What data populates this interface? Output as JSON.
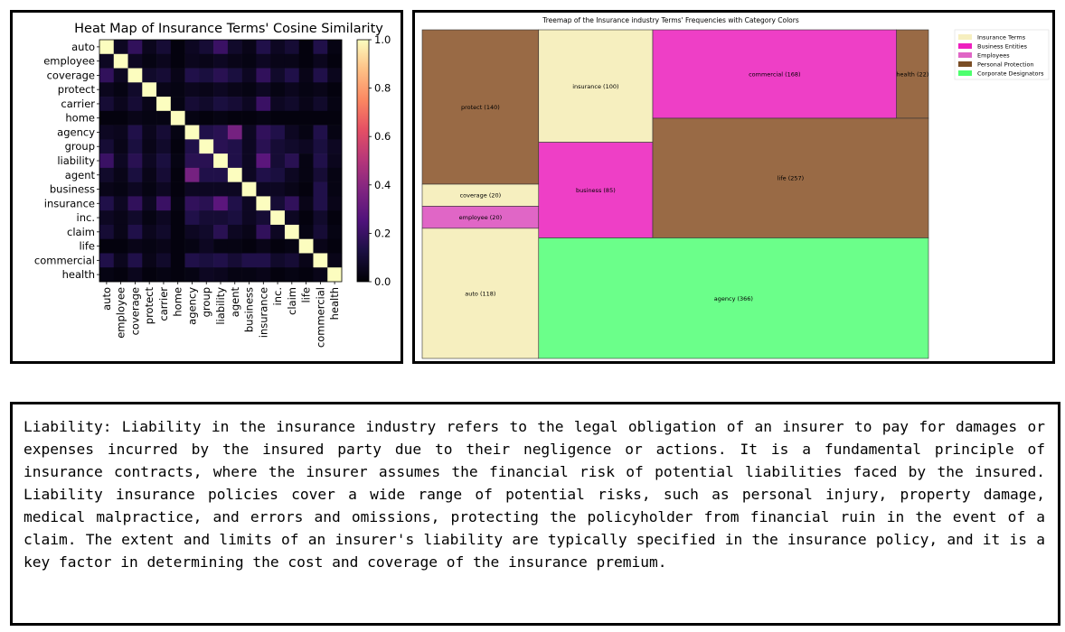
{
  "heatmap": {
    "title": "Heat Map of Insurance Terms' Cosine Similarity",
    "terms": [
      "auto",
      "employee",
      "coverage",
      "protect",
      "carrier",
      "home",
      "agency",
      "group",
      "liability",
      "agent",
      "business",
      "insurance",
      "inc.",
      "claim",
      "life",
      "commercial",
      "health"
    ],
    "colorbar": {
      "min": 0.0,
      "max": 1.0,
      "ticks": [
        "0.0",
        "0.2",
        "0.4",
        "0.6",
        "0.8",
        "1.0"
      ],
      "colormap": "magma"
    },
    "matrix": [
      [
        1.0,
        0.06,
        0.18,
        0.05,
        0.1,
        0.02,
        0.06,
        0.1,
        0.2,
        0.08,
        0.04,
        0.14,
        0.06,
        0.1,
        0.02,
        0.14,
        0.03
      ],
      [
        0.06,
        1.0,
        0.06,
        0.03,
        0.05,
        0.02,
        0.05,
        0.04,
        0.06,
        0.04,
        0.03,
        0.06,
        0.04,
        0.04,
        0.02,
        0.05,
        0.02
      ],
      [
        0.18,
        0.06,
        1.0,
        0.08,
        0.1,
        0.04,
        0.14,
        0.12,
        0.16,
        0.12,
        0.06,
        0.18,
        0.08,
        0.14,
        0.04,
        0.14,
        0.05
      ],
      [
        0.05,
        0.03,
        0.08,
        1.0,
        0.04,
        0.03,
        0.05,
        0.04,
        0.06,
        0.04,
        0.03,
        0.06,
        0.03,
        0.05,
        0.03,
        0.04,
        0.02
      ],
      [
        0.1,
        0.05,
        0.1,
        0.04,
        1.0,
        0.03,
        0.1,
        0.08,
        0.12,
        0.1,
        0.06,
        0.2,
        0.06,
        0.08,
        0.04,
        0.08,
        0.03
      ],
      [
        0.02,
        0.02,
        0.04,
        0.03,
        0.03,
        1.0,
        0.03,
        0.02,
        0.03,
        0.02,
        0.02,
        0.03,
        0.02,
        0.02,
        0.02,
        0.02,
        0.02
      ],
      [
        0.06,
        0.05,
        0.14,
        0.05,
        0.1,
        0.03,
        1.0,
        0.14,
        0.16,
        0.35,
        0.06,
        0.18,
        0.14,
        0.06,
        0.03,
        0.14,
        0.03
      ],
      [
        0.1,
        0.04,
        0.12,
        0.04,
        0.08,
        0.02,
        0.14,
        1.0,
        0.16,
        0.14,
        0.06,
        0.16,
        0.1,
        0.08,
        0.06,
        0.12,
        0.06
      ],
      [
        0.2,
        0.06,
        0.16,
        0.06,
        0.12,
        0.03,
        0.16,
        0.16,
        1.0,
        0.14,
        0.06,
        0.28,
        0.1,
        0.16,
        0.03,
        0.14,
        0.05
      ],
      [
        0.08,
        0.04,
        0.12,
        0.04,
        0.1,
        0.02,
        0.35,
        0.14,
        0.14,
        1.0,
        0.06,
        0.14,
        0.12,
        0.06,
        0.03,
        0.1,
        0.03
      ],
      [
        0.04,
        0.03,
        0.06,
        0.03,
        0.06,
        0.02,
        0.06,
        0.06,
        0.06,
        0.06,
        1.0,
        0.06,
        0.06,
        0.04,
        0.02,
        0.14,
        0.03
      ],
      [
        0.14,
        0.06,
        0.18,
        0.06,
        0.2,
        0.03,
        0.18,
        0.16,
        0.28,
        0.14,
        0.06,
        1.0,
        0.1,
        0.18,
        0.04,
        0.14,
        0.04
      ],
      [
        0.06,
        0.04,
        0.08,
        0.03,
        0.06,
        0.02,
        0.14,
        0.1,
        0.1,
        0.12,
        0.06,
        0.1,
        1.0,
        0.06,
        0.02,
        0.08,
        0.02
      ],
      [
        0.1,
        0.04,
        0.14,
        0.05,
        0.08,
        0.02,
        0.06,
        0.08,
        0.16,
        0.06,
        0.04,
        0.18,
        0.06,
        1.0,
        0.03,
        0.1,
        0.03
      ],
      [
        0.02,
        0.02,
        0.04,
        0.03,
        0.04,
        0.02,
        0.03,
        0.06,
        0.03,
        0.03,
        0.02,
        0.04,
        0.02,
        0.03,
        1.0,
        0.04,
        0.02
      ],
      [
        0.14,
        0.05,
        0.14,
        0.04,
        0.08,
        0.02,
        0.14,
        0.12,
        0.14,
        0.1,
        0.14,
        0.14,
        0.08,
        0.1,
        0.04,
        1.0,
        0.04
      ],
      [
        0.03,
        0.02,
        0.05,
        0.02,
        0.03,
        0.02,
        0.03,
        0.06,
        0.05,
        0.03,
        0.03,
        0.04,
        0.02,
        0.03,
        0.02,
        0.04,
        1.0
      ]
    ]
  },
  "treemap": {
    "title": "Treemap of the Insurance industry Terms' Frequencies with Category Colors",
    "legend": [
      {
        "label": "Insurance Terms",
        "color": "#f6efbf"
      },
      {
        "label": "Business Entities",
        "color": "#ee1fbf"
      },
      {
        "label": "Employees",
        "color": "#e066c6"
      },
      {
        "label": "Personal Protection",
        "color": "#7a4d25"
      },
      {
        "label": "Corporate Designators",
        "color": "#4dff6e"
      }
    ],
    "items": [
      {
        "term": "protect",
        "value": 140,
        "label": "protect (140)",
        "color": "#996a45"
      },
      {
        "term": "coverage",
        "value": 20,
        "label": "coverage (20)",
        "color": "#f6efbf"
      },
      {
        "term": "employee",
        "value": 20,
        "label": "employee (20)",
        "color": "#e066c6"
      },
      {
        "term": "auto",
        "value": 118,
        "label": "auto (118)",
        "color": "#f6efbf"
      },
      {
        "term": "insurance",
        "value": 100,
        "label": "insurance (100)",
        "color": "#f6efbf"
      },
      {
        "term": "business",
        "value": 85,
        "label": "business (85)",
        "color": "#ee3fc6"
      },
      {
        "term": "commercial",
        "value": 168,
        "label": "commercial (168)",
        "color": "#ee3fc6"
      },
      {
        "term": "health",
        "value": 22,
        "label": "health (22)",
        "color": "#996a45"
      },
      {
        "term": "life",
        "value": 257,
        "label": "life (257)",
        "color": "#996a45"
      },
      {
        "term": "agency",
        "value": 366,
        "label": "agency (366)",
        "color": "#6bff8a"
      }
    ]
  },
  "description": "Liability: Liability in the insurance industry refers to the legal obligation of an insurer to pay for damages or expenses incurred by the insured party due to their negligence or actions. It is a fundamental principle of insurance contracts, where the insurer assumes the financial risk of potential liabilities faced by the insured. Liability insurance policies cover a wide range of potential risks, such as personal injury, property damage, medical malpractice, and errors and omissions, protecting the policyholder from financial ruin in the event of a claim. The extent and limits of an insurer's liability are typically specified in the insurance policy, and it is a key factor in determining the cost and coverage of the insurance premium.",
  "chart_data": [
    {
      "type": "heatmap",
      "title": "Heat Map of Insurance Terms' Cosine Similarity",
      "x": [
        "auto",
        "employee",
        "coverage",
        "protect",
        "carrier",
        "home",
        "agency",
        "group",
        "liability",
        "agent",
        "business",
        "insurance",
        "inc.",
        "claim",
        "life",
        "commercial",
        "health"
      ],
      "y": [
        "auto",
        "employee",
        "coverage",
        "protect",
        "carrier",
        "home",
        "agency",
        "group",
        "liability",
        "agent",
        "business",
        "insurance",
        "inc.",
        "claim",
        "life",
        "commercial",
        "health"
      ],
      "zlim": [
        0.0,
        1.0
      ],
      "colorbar_ticks": [
        0.0,
        0.2,
        0.4,
        0.6,
        0.8,
        1.0
      ]
    },
    {
      "type": "treemap",
      "title": "Treemap of the Insurance industry Terms' Frequencies with Category Colors",
      "categories": [
        "protect",
        "coverage",
        "employee",
        "auto",
        "insurance",
        "business",
        "commercial",
        "health",
        "life",
        "agency"
      ],
      "values": [
        140,
        20,
        20,
        118,
        100,
        85,
        168,
        22,
        257,
        366
      ],
      "legend": [
        "Insurance Terms",
        "Business Entities",
        "Employees",
        "Personal Protection",
        "Corporate Designators"
      ],
      "legend_position": "top-right"
    }
  ]
}
